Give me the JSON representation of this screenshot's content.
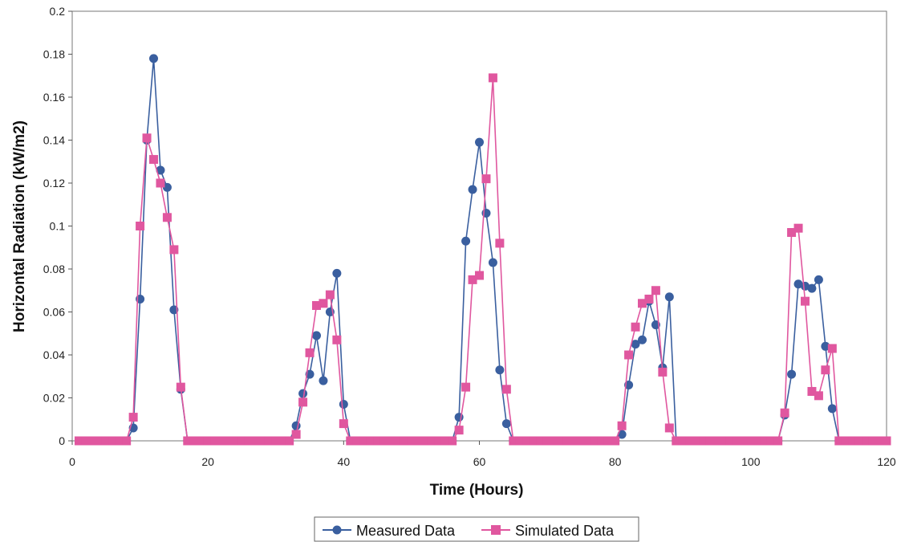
{
  "chart_data": {
    "type": "line",
    "xlabel": "Time (Hours)",
    "ylabel": "Horizontal Radiation (kW/m2)",
    "xlim": [
      0,
      120
    ],
    "ylim": [
      0,
      0.2
    ],
    "xticks": [
      "0",
      "20",
      "40",
      "60",
      "80",
      "100",
      "120"
    ],
    "yticks": [
      "0",
      "0.02",
      "0.04",
      "0.06",
      "0.08",
      "0.1",
      "0.12",
      "0.14",
      "0.16",
      "0.18",
      "0.2"
    ],
    "grid": false,
    "legend_position": "bottom",
    "series": [
      {
        "name": "Measured Data",
        "color": "#3a5f9f",
        "marker": "circle",
        "x": [
          1,
          2,
          3,
          4,
          5,
          6,
          7,
          8,
          9,
          10,
          11,
          12,
          13,
          14,
          15,
          16,
          17,
          18,
          19,
          20,
          21,
          22,
          23,
          24,
          25,
          26,
          27,
          28,
          29,
          30,
          31,
          32,
          33,
          34,
          35,
          36,
          37,
          38,
          39,
          40,
          41,
          42,
          43,
          44,
          45,
          46,
          47,
          48,
          49,
          50,
          51,
          52,
          53,
          54,
          55,
          56,
          57,
          58,
          59,
          60,
          61,
          62,
          63,
          64,
          65,
          66,
          67,
          68,
          69,
          70,
          71,
          72,
          73,
          74,
          75,
          76,
          77,
          78,
          79,
          80,
          81,
          82,
          83,
          84,
          85,
          86,
          87,
          88,
          89,
          90,
          91,
          92,
          93,
          94,
          95,
          96,
          97,
          98,
          99,
          100,
          101,
          102,
          103,
          104,
          105,
          106,
          107,
          108,
          109,
          110,
          111,
          112,
          113,
          114,
          115,
          116,
          117,
          118,
          119,
          120
        ],
        "y": [
          0,
          0,
          0,
          0,
          0,
          0,
          0,
          0,
          0.006,
          0.066,
          0.14,
          0.178,
          0.126,
          0.118,
          0.061,
          0.024,
          0,
          0,
          0,
          0,
          0,
          0,
          0,
          0,
          0,
          0,
          0,
          0,
          0,
          0,
          0,
          0,
          0.007,
          0.022,
          0.031,
          0.049,
          0.028,
          0.06,
          0.078,
          0.017,
          0,
          0,
          0,
          0,
          0,
          0,
          0,
          0,
          0,
          0,
          0,
          0,
          0,
          0,
          0,
          0,
          0.011,
          0.093,
          0.117,
          0.139,
          0.106,
          0.083,
          0.033,
          0.008,
          0,
          0,
          0,
          0,
          0,
          0,
          0,
          0,
          0,
          0,
          0,
          0,
          0,
          0,
          0,
          0,
          0.003,
          0.026,
          0.045,
          0.047,
          0.065,
          0.054,
          0.034,
          0.067,
          0,
          0,
          0,
          0,
          0,
          0,
          0,
          0,
          0,
          0,
          0,
          0,
          0,
          0,
          0,
          0,
          0.012,
          0.031,
          0.073,
          0.072,
          0.071,
          0.075,
          0.044,
          0.015,
          0,
          0,
          0,
          0,
          0,
          0,
          0,
          0
        ]
      },
      {
        "name": "Simulated Data",
        "color": "#e0579f",
        "marker": "square",
        "x": [
          1,
          2,
          3,
          4,
          5,
          6,
          7,
          8,
          9,
          10,
          11,
          12,
          13,
          14,
          15,
          16,
          17,
          18,
          19,
          20,
          21,
          22,
          23,
          24,
          25,
          26,
          27,
          28,
          29,
          30,
          31,
          32,
          33,
          34,
          35,
          36,
          37,
          38,
          39,
          40,
          41,
          42,
          43,
          44,
          45,
          46,
          47,
          48,
          49,
          50,
          51,
          52,
          53,
          54,
          55,
          56,
          57,
          58,
          59,
          60,
          61,
          62,
          63,
          64,
          65,
          66,
          67,
          68,
          69,
          70,
          71,
          72,
          73,
          74,
          75,
          76,
          77,
          78,
          79,
          80,
          81,
          82,
          83,
          84,
          85,
          86,
          87,
          88,
          89,
          90,
          91,
          92,
          93,
          94,
          95,
          96,
          97,
          98,
          99,
          100,
          101,
          102,
          103,
          104,
          105,
          106,
          107,
          108,
          109,
          110,
          111,
          112,
          113,
          114,
          115,
          116,
          117,
          118,
          119,
          120
        ],
        "y": [
          0,
          0,
          0,
          0,
          0,
          0,
          0,
          0,
          0.011,
          0.1,
          0.141,
          0.131,
          0.12,
          0.104,
          0.089,
          0.025,
          0,
          0,
          0,
          0,
          0,
          0,
          0,
          0,
          0,
          0,
          0,
          0,
          0,
          0,
          0,
          0,
          0.003,
          0.018,
          0.041,
          0.063,
          0.064,
          0.068,
          0.047,
          0.008,
          0,
          0,
          0,
          0,
          0,
          0,
          0,
          0,
          0,
          0,
          0,
          0,
          0,
          0,
          0,
          0,
          0.005,
          0.025,
          0.075,
          0.077,
          0.122,
          0.169,
          0.092,
          0.024,
          0,
          0,
          0,
          0,
          0,
          0,
          0,
          0,
          0,
          0,
          0,
          0,
          0,
          0,
          0,
          0,
          0.007,
          0.04,
          0.053,
          0.064,
          0.066,
          0.07,
          0.032,
          0.006,
          0,
          0,
          0,
          0,
          0,
          0,
          0,
          0,
          0,
          0,
          0,
          0,
          0,
          0,
          0,
          0,
          0.013,
          0.097,
          0.099,
          0.065,
          0.023,
          0.021,
          0.033,
          0.043,
          0,
          0,
          0,
          0,
          0,
          0,
          0,
          0
        ]
      }
    ]
  }
}
